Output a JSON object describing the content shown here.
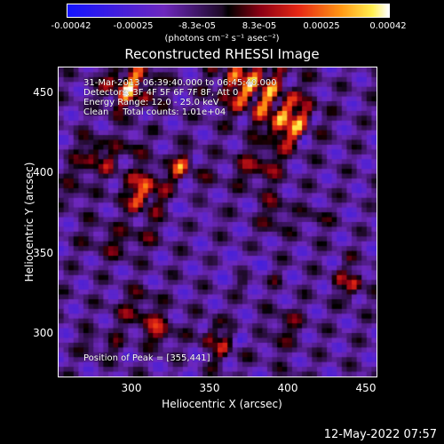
{
  "colorbar": {
    "ticks": [
      "-0.00042",
      "-0.00025",
      "-8.3e-05",
      "8.3e-05",
      "0.00025",
      "0.00042"
    ],
    "units": "(photons cm⁻² s⁻¹ asec⁻²)"
  },
  "title": "Reconstructed RHESSI Image",
  "overlay": {
    "time_range": "31-Mar-2013 06:39:40.000 to 06:45:40.000",
    "detectors": "Detectors: 3F 4F 5F 6F 7F 8F, Att 0",
    "energy": "Energy Range: 12.0 - 25.0 keV",
    "clean": "Clean     Total counts: 1.01e+04",
    "peak": "Position of Peak = [355,441]"
  },
  "axes": {
    "xlabel": "Heliocentric X (arcsec)",
    "ylabel": "Heliocentric Y (arcsec)",
    "xticks": [
      "300",
      "350",
      "400",
      "450"
    ],
    "yticks": [
      "450",
      "400",
      "350",
      "300"
    ],
    "xrange": [
      260,
      450
    ],
    "yrange": [
      270,
      465
    ]
  },
  "footer": {
    "date": "12-May-2022 07:57"
  }
}
